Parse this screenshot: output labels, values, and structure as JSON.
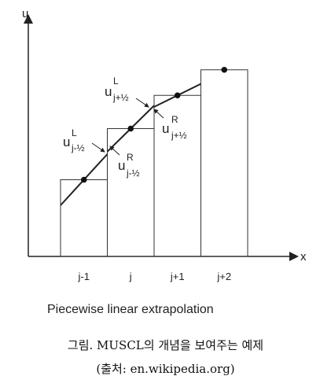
{
  "chart_data": {
    "type": "line",
    "title": "Piecewise linear extrapolation",
    "xlabel": "x",
    "ylabel": "u",
    "categories": [
      "j-1",
      "j",
      "j+1",
      "j+2"
    ],
    "cell_values": [
      3.0,
      5.0,
      6.3,
      7.3
    ],
    "reconstruction_segments": [
      {
        "cell": "j-1",
        "left": 2.0,
        "right": 4.0
      },
      {
        "cell": "j",
        "left": 4.1,
        "right": 5.9
      },
      {
        "cell": "j+1",
        "left": 5.85,
        "right": 6.75
      }
    ],
    "annotations": [
      {
        "main": "u",
        "sup": "L",
        "sub": "j-½"
      },
      {
        "main": "u",
        "sup": "R",
        "sub": "j-½"
      },
      {
        "main": "u",
        "sup": "L",
        "sub": "j+½"
      },
      {
        "main": "u",
        "sup": "R",
        "sub": "j+½"
      }
    ]
  },
  "caption": {
    "line1": "그림. MUSCL의 개념을 보여주는 예제",
    "line2": "(출처: en.wikipedia.org)"
  }
}
